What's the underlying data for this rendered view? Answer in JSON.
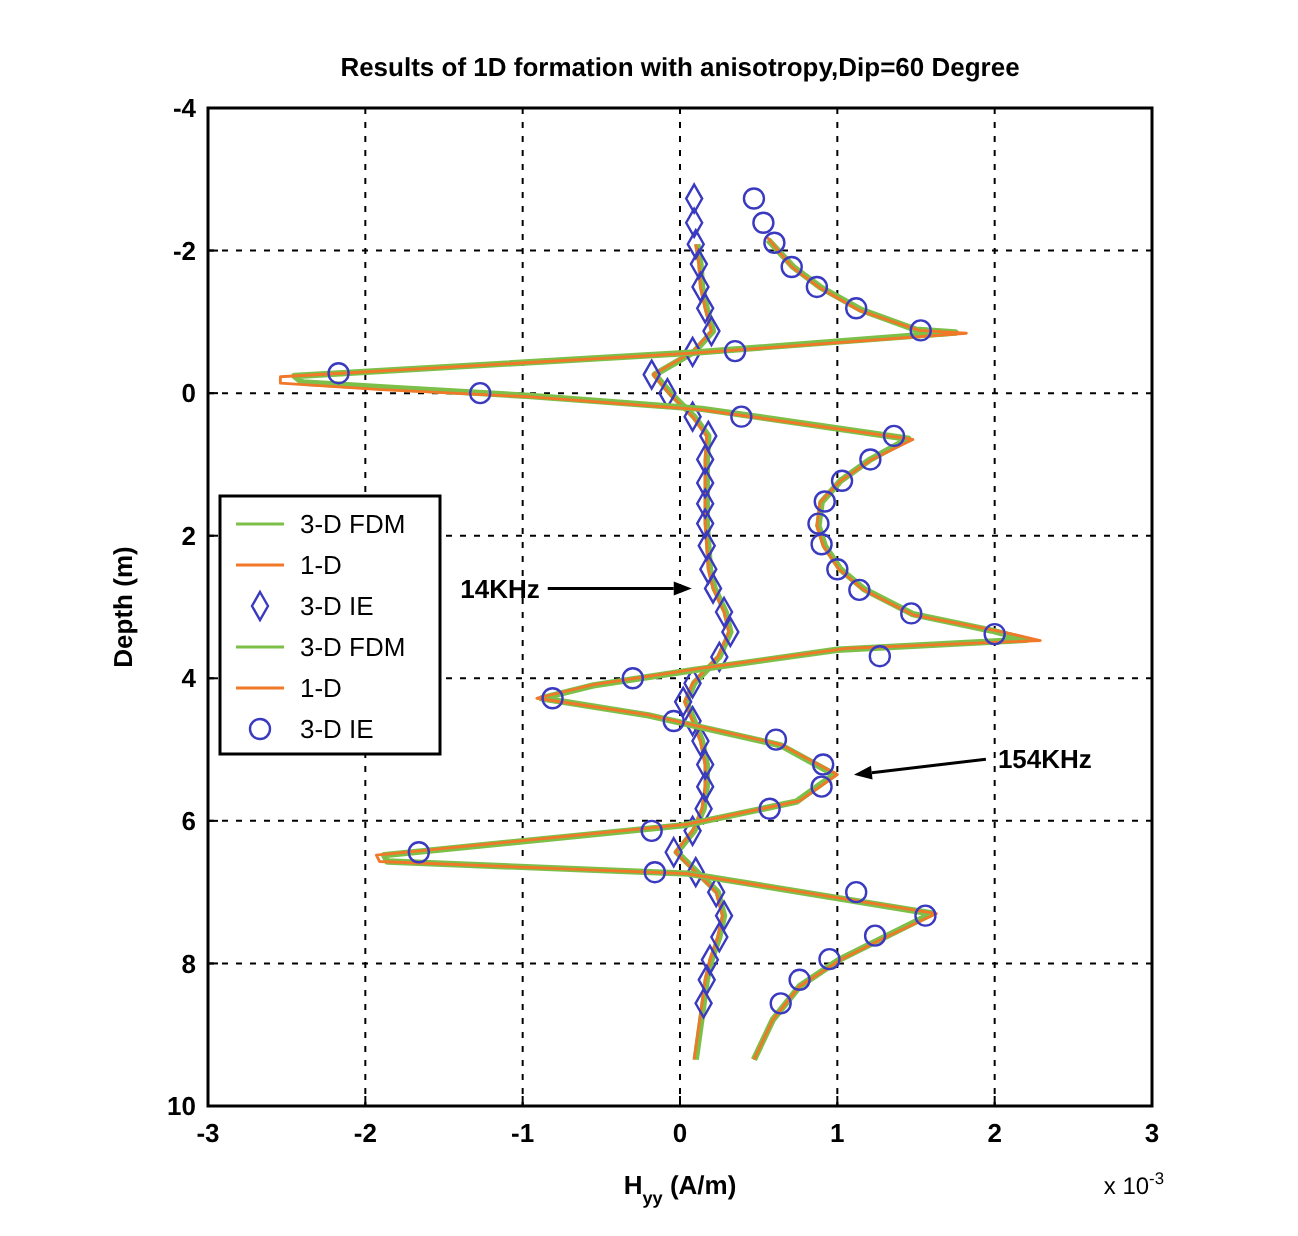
{
  "chart_data": {
    "type": "line",
    "title": "Results of 1D formation with anisotropy,Dip=60 Degree",
    "xlabel": "H$_{yy}$ (A/m)",
    "ylabel": "Depth (m)",
    "xlim": [
      -3,
      3
    ],
    "xticks": [
      -3,
      -2,
      -1,
      0,
      1,
      2,
      3
    ],
    "ylim": [
      10,
      -4
    ],
    "yticks": [
      -4,
      -2,
      0,
      2,
      4,
      6,
      8,
      10
    ],
    "grid": true,
    "legend": "left",
    "annotations": [
      "14KHz",
      "154KHz",
      "x 10$^{-3}$"
    ],
    "series": [
      {
        "name": "3-D FDM",
        "color": "#7cc04a",
        "x": [
          0.11,
          0.13,
          0.14,
          0.17,
          0.21,
          0.09,
          -0.16,
          -0.06,
          0.09,
          0.18,
          0.17,
          0.17,
          0.17,
          0.17,
          0.18,
          0.19,
          0.22,
          0.29,
          0.32,
          0.25,
          0.09,
          0.04,
          0.09,
          0.14,
          0.17,
          0.17,
          0.15,
          0.09,
          -0.02,
          0.11,
          0.24,
          0.28,
          0.25,
          0.2,
          0.17,
          0.15,
          0.1
        ],
        "values": [
          -2.09,
          -1.81,
          -1.49,
          -1.19,
          -0.87,
          -0.58,
          -0.26,
          0,
          0.33,
          0.6,
          0.93,
          1.26,
          1.55,
          1.83,
          2.14,
          2.47,
          2.74,
          3.07,
          3.35,
          3.7,
          4.07,
          4.33,
          4.6,
          4.88,
          5.21,
          5.52,
          5.83,
          6.14,
          6.44,
          6.72,
          7,
          7.33,
          7.63,
          7.95,
          8.23,
          8.56,
          9.35
        ]
      },
      {
        "name": "1-D",
        "color": "#f07828",
        "x": [
          0.1,
          0.12,
          0.13,
          0.16,
          0.2,
          0.08,
          -0.17,
          -0.07,
          0.08,
          0.17,
          0.16,
          0.16,
          0.16,
          0.16,
          0.17,
          0.18,
          0.21,
          0.28,
          0.31,
          0.24,
          0.08,
          0.03,
          0.08,
          0.13,
          0.16,
          0.16,
          0.14,
          0.08,
          -0.03,
          0.1,
          0.23,
          0.27,
          0.24,
          0.19,
          0.16,
          0.14,
          0.09
        ],
        "values": [
          -2.09,
          -1.81,
          -1.49,
          -1.19,
          -0.87,
          -0.58,
          -0.26,
          0,
          0.33,
          0.6,
          0.93,
          1.26,
          1.55,
          1.83,
          2.14,
          2.47,
          2.74,
          3.07,
          3.35,
          3.7,
          4.07,
          4.33,
          4.6,
          4.88,
          5.21,
          5.52,
          5.83,
          6.14,
          6.44,
          6.72,
          7,
          7.33,
          7.63,
          7.95,
          8.23,
          8.56,
          9.35
        ]
      },
      {
        "name": "3-D IE",
        "type": "scatter",
        "marker": "diamond",
        "color": "#3a3ac0",
        "x": [
          0.09,
          0.09,
          0.1,
          0.12,
          0.13,
          0.16,
          0.2,
          0.08,
          -0.18,
          -0.08,
          0.08,
          0.18,
          0.16,
          0.16,
          0.16,
          0.16,
          0.17,
          0.18,
          0.21,
          0.28,
          0.32,
          0.25,
          0.08,
          0.02,
          0.08,
          0.13,
          0.16,
          0.16,
          0.15,
          0.08,
          -0.04,
          0.1,
          0.23,
          0.28,
          0.25,
          0.19,
          0.17,
          0.15
        ],
        "values": [
          -2.73,
          -2.39,
          -2.09,
          -1.81,
          -1.49,
          -1.19,
          -0.87,
          -0.58,
          -0.26,
          0,
          0.33,
          0.6,
          0.93,
          1.26,
          1.55,
          1.83,
          2.14,
          2.47,
          2.74,
          3.07,
          3.35,
          3.7,
          4.07,
          4.33,
          4.6,
          4.88,
          5.21,
          5.52,
          5.83,
          6.14,
          6.44,
          6.72,
          7,
          7.33,
          7.63,
          7.95,
          8.23,
          8.56
        ]
      },
      {
        "name": "3-D FDM",
        "color": "#7cc04a",
        "x": [
          0.56,
          0.72,
          0.89,
          1.15,
          1.5,
          1.75,
          0.1,
          -2.45,
          -2.4,
          -1.8,
          -0.95,
          0.14,
          1.45,
          1.21,
          1.02,
          0.9,
          0.88,
          0.92,
          1.02,
          1.17,
          1.48,
          1.98,
          2.2,
          1,
          0.1,
          -0.55,
          -0.88,
          -0.2,
          0.64,
          0.98,
          0.74,
          0.03,
          -1.88,
          -1.86,
          0.05,
          1.6,
          1.3,
          1.01,
          0.76,
          0.59,
          0.47
        ],
        "values": [
          -2.15,
          -1.77,
          -1.49,
          -1.17,
          -0.89,
          -0.85,
          -0.57,
          -0.24,
          -0.15,
          -0.07,
          0.04,
          0.22,
          0.64,
          0.93,
          1.23,
          1.53,
          1.86,
          2.14,
          2.47,
          2.75,
          3.1,
          3.33,
          3.46,
          3.6,
          3.88,
          4.1,
          4.28,
          4.52,
          4.94,
          5.35,
          5.73,
          6.06,
          6.48,
          6.57,
          6.74,
          7.3,
          7.63,
          7.95,
          8.32,
          8.79,
          9.35
        ]
      },
      {
        "name": "1-D",
        "color": "#f07828",
        "x": [
          0.55,
          0.71,
          0.88,
          1.14,
          1.52,
          1.82,
          0.08,
          -2.54,
          -2.54,
          -1.9,
          -0.97,
          0.13,
          1.48,
          1.22,
          1.02,
          0.89,
          0.87,
          0.91,
          1.01,
          1.16,
          1.48,
          2.01,
          2.29,
          1.06,
          0.13,
          -0.55,
          -0.91,
          -0.21,
          0.64,
          1,
          0.76,
          0.04,
          -1.93,
          -1.91,
          0.04,
          1.63,
          1.31,
          1.02,
          0.76,
          0.59,
          0.47
        ],
        "values": [
          -2.2,
          -1.77,
          -1.49,
          -1.16,
          -0.88,
          -0.84,
          -0.56,
          -0.23,
          -0.14,
          -0.05,
          0.05,
          0.23,
          0.65,
          0.93,
          1.23,
          1.53,
          1.86,
          2.14,
          2.47,
          2.75,
          3.11,
          3.33,
          3.47,
          3.58,
          3.86,
          4.09,
          4.28,
          4.51,
          4.93,
          5.35,
          5.72,
          6.05,
          6.48,
          6.57,
          6.74,
          7.3,
          7.63,
          7.95,
          8.32,
          8.79,
          9.35
        ]
      },
      {
        "name": "3-D IE",
        "type": "scatter",
        "marker": "circle",
        "color": "#3a3ac0",
        "x": [
          0.47,
          0.53,
          0.6,
          0.71,
          0.87,
          1.12,
          1.53,
          0.35,
          -2.17,
          -1.27,
          0.39,
          1.36,
          1.21,
          1.03,
          0.92,
          0.88,
          0.9,
          1,
          1.14,
          1.47,
          2,
          1.27,
          -0.3,
          -0.81,
          -0.04,
          0.61,
          0.91,
          0.9,
          0.57,
          -0.18,
          -1.66,
          -0.16,
          1.12,
          1.56,
          1.24,
          0.95,
          0.76,
          0.64
        ],
        "values": [
          -2.73,
          -2.39,
          -2.11,
          -1.77,
          -1.49,
          -1.19,
          -0.88,
          -0.59,
          -0.28,
          0,
          0.33,
          0.6,
          0.93,
          1.23,
          1.52,
          1.83,
          2.12,
          2.47,
          2.76,
          3.09,
          3.38,
          3.69,
          4,
          4.28,
          4.6,
          4.86,
          5.21,
          5.52,
          5.83,
          6.14,
          6.44,
          6.72,
          7,
          7.33,
          7.61,
          7.94,
          8.23,
          8.56
        ]
      }
    ]
  }
}
